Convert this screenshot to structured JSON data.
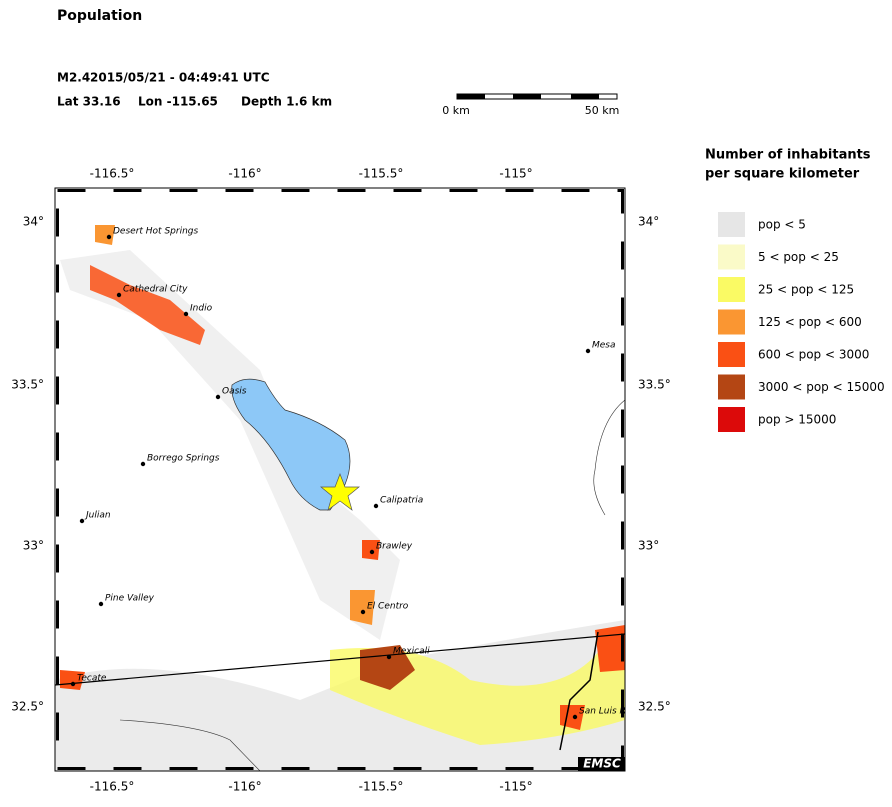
{
  "header": {
    "title": "Population",
    "magnitude": "M2.4",
    "datetime": "2015/05/21 - 04:49:41 UTC",
    "lat": "Lat 33.16",
    "lon": "Lon -115.65",
    "depth": "Depth  1.6 km"
  },
  "scale_bar": {
    "start": "0 km",
    "end": "50 km"
  },
  "map": {
    "lon_labels": [
      "-116.5°",
      "-116°",
      "-115.5°",
      "-115°"
    ],
    "lat_labels": [
      "34°",
      "33.5°",
      "33°",
      "32.5°"
    ],
    "cities": [
      "Desert Hot Springs",
      "Cathedral City",
      "Indio",
      "Oasis",
      "Borrego Springs",
      "Calipatria",
      "Julian",
      "Brawley",
      "Pine Valley",
      "El Centro",
      "Mexicali",
      "Tecate",
      "San Luis R",
      "Mesa"
    ],
    "credit": "EMSC"
  },
  "legend": {
    "title": [
      "Number of inhabitants",
      "per square kilometer"
    ],
    "items": [
      {
        "label": "pop < 5",
        "color": "#e6e6e6"
      },
      {
        "label": "5 < pop < 25",
        "color": "#fafac8"
      },
      {
        "label": "25 < pop < 125",
        "color": "#fafa64"
      },
      {
        "label": "125 < pop < 600",
        "color": "#fa9632"
      },
      {
        "label": "600 < pop < 3000",
        "color": "#fa5014"
      },
      {
        "label": "3000 < pop < 15000",
        "color": "#b44614"
      },
      {
        "label": "pop > 15000",
        "color": "#dc0a0a"
      }
    ]
  }
}
